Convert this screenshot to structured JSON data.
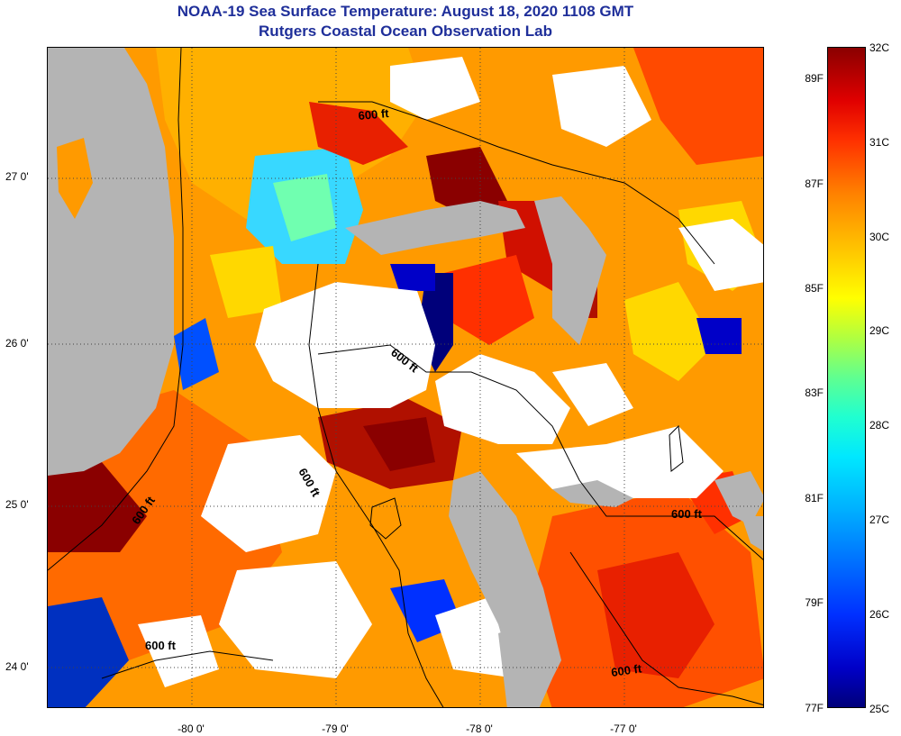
{
  "header": {
    "title": "NOAA-19 Sea Surface Temperature:  August 18, 2020 1108 GMT",
    "subtitle": "Rutgers Coastal Ocean Observation Lab"
  },
  "map": {
    "lat_ticks": [
      "27 0'",
      "26 0'",
      "25 0'",
      "24 0'"
    ],
    "lon_ticks": [
      "-80 0'",
      "-79 0'",
      "-78 0'",
      "-77 0'"
    ],
    "contour_label": "600 ft",
    "colors": {
      "land": "#b4b4b4",
      "cloud": "#ffffff",
      "warm_deep": "#8a0000",
      "warm": "#e02000",
      "mid_orange": "#ff7a00",
      "orange": "#ffa000",
      "yellow": "#ffd800",
      "cool_cyan": "#38d8ff",
      "cool_blue": "#0050ff",
      "cold": "#00007a",
      "contour": "#000000"
    }
  },
  "colorbar": {
    "celsius_labels": [
      "32C",
      "31C",
      "30C",
      "29C",
      "28C",
      "27C",
      "26C",
      "25C"
    ],
    "fahrenheit_labels": [
      "89F",
      "87F",
      "85F",
      "83F",
      "81F",
      "79F",
      "77F"
    ],
    "range_c": [
      25,
      32
    ],
    "range_f": [
      77,
      89.6
    ]
  }
}
